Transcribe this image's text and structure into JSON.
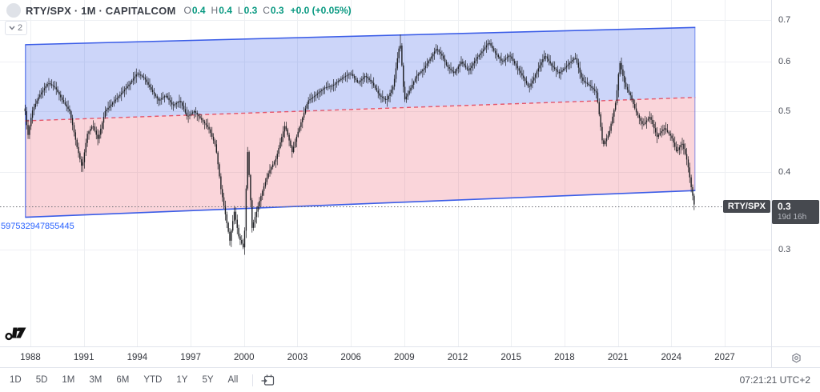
{
  "header": {
    "symbol_title": "RTY/SPX · 1M · CAPITALCOM",
    "ohlc": [
      {
        "label": "O",
        "value": "0.4"
      },
      {
        "label": "H",
        "value": "0.4"
      },
      {
        "label": "L",
        "value": "0.3"
      },
      {
        "label": "C",
        "value": "0.3"
      }
    ],
    "change": "+0.0 (+0.05%)",
    "collapse_count": "2"
  },
  "price_scale": {
    "symbol_label": "RTY/SPX",
    "last_price_label": "0.3",
    "countdown": "19d 16h"
  },
  "drawing_label": "597532947855445",
  "toolbar": {
    "ranges": [
      "1D",
      "5D",
      "1M",
      "3M",
      "6M",
      "YTD",
      "1Y",
      "5Y",
      "All"
    ],
    "clock": "07:21:21 UTC+2"
  },
  "colors": {
    "background": "#ffffff",
    "grid": "#eef0f3",
    "axis_border": "#e0e3eb",
    "bar": "#1c1e22",
    "channel_line": "#3b5de7",
    "channel_fill_upper": "rgba(59,93,231,0.26)",
    "channel_fill_lower": "rgba(231,62,88,0.22)",
    "channel_mid_line": "#e4556a",
    "price_line": "#6b6e76",
    "label_box_bg": "#46494f",
    "drawing_text_blue": "#2962ff",
    "legend_value_green": "#089981"
  },
  "chart_data": {
    "type": "candlestick",
    "symbol": "RTY/SPX",
    "timeframe": "1M",
    "scale": "logarithmic",
    "grid": true,
    "price_ticks": [
      0.7,
      0.6,
      0.5,
      0.4,
      0.3
    ],
    "year_ticks": [
      1988,
      1991,
      1994,
      1997,
      2000,
      2003,
      2006,
      2009,
      2012,
      2015,
      2018,
      2021,
      2024,
      2027
    ],
    "last_price": 0.352,
    "bars_per_year": 12,
    "series_anchors": [
      [
        1987.7,
        0.5
      ],
      [
        1987.85,
        0.455
      ],
      [
        1988.1,
        0.5
      ],
      [
        1988.5,
        0.53
      ],
      [
        1989.0,
        0.555
      ],
      [
        1989.4,
        0.545
      ],
      [
        1989.8,
        0.52
      ],
      [
        1990.2,
        0.5
      ],
      [
        1990.6,
        0.44
      ],
      [
        1990.9,
        0.405
      ],
      [
        1991.2,
        0.46
      ],
      [
        1991.5,
        0.475
      ],
      [
        1991.8,
        0.45
      ],
      [
        1992.2,
        0.5
      ],
      [
        1992.6,
        0.515
      ],
      [
        1993.0,
        0.53
      ],
      [
        1993.5,
        0.55
      ],
      [
        1994.0,
        0.575
      ],
      [
        1994.4,
        0.565
      ],
      [
        1994.8,
        0.54
      ],
      [
        1995.2,
        0.52
      ],
      [
        1995.6,
        0.53
      ],
      [
        1996.0,
        0.51
      ],
      [
        1996.4,
        0.52
      ],
      [
        1996.8,
        0.49
      ],
      [
        1997.2,
        0.5
      ],
      [
        1997.6,
        0.485
      ],
      [
        1998.0,
        0.47
      ],
      [
        1998.4,
        0.44
      ],
      [
        1998.7,
        0.375
      ],
      [
        1999.0,
        0.335
      ],
      [
        1999.2,
        0.31
      ],
      [
        1999.45,
        0.345
      ],
      [
        1999.7,
        0.315
      ],
      [
        2000.0,
        0.3
      ],
      [
        2000.2,
        0.43
      ],
      [
        2000.45,
        0.325
      ],
      [
        2000.7,
        0.345
      ],
      [
        2001.0,
        0.37
      ],
      [
        2001.4,
        0.4
      ],
      [
        2001.8,
        0.42
      ],
      [
        2002.3,
        0.475
      ],
      [
        2002.7,
        0.43
      ],
      [
        2003.1,
        0.47
      ],
      [
        2003.6,
        0.52
      ],
      [
        2004.0,
        0.53
      ],
      [
        2004.5,
        0.545
      ],
      [
        2005.0,
        0.55
      ],
      [
        2005.5,
        0.565
      ],
      [
        2006.0,
        0.575
      ],
      [
        2006.4,
        0.555
      ],
      [
        2006.8,
        0.57
      ],
      [
        2007.2,
        0.555
      ],
      [
        2007.6,
        0.53
      ],
      [
        2008.0,
        0.52
      ],
      [
        2008.4,
        0.55
      ],
      [
        2008.7,
        0.63
      ],
      [
        2008.75,
        0.655
      ],
      [
        2009.0,
        0.52
      ],
      [
        2009.3,
        0.54
      ],
      [
        2009.7,
        0.57
      ],
      [
        2010.1,
        0.585
      ],
      [
        2010.5,
        0.61
      ],
      [
        2010.8,
        0.63
      ],
      [
        2011.1,
        0.615
      ],
      [
        2011.4,
        0.59
      ],
      [
        2011.8,
        0.575
      ],
      [
        2012.2,
        0.6
      ],
      [
        2012.6,
        0.58
      ],
      [
        2013.0,
        0.605
      ],
      [
        2013.4,
        0.625
      ],
      [
        2013.75,
        0.645
      ],
      [
        2014.1,
        0.62
      ],
      [
        2014.5,
        0.6
      ],
      [
        2014.9,
        0.615
      ],
      [
        2015.3,
        0.59
      ],
      [
        2015.7,
        0.565
      ],
      [
        2016.0,
        0.545
      ],
      [
        2016.4,
        0.575
      ],
      [
        2016.9,
        0.615
      ],
      [
        2017.3,
        0.59
      ],
      [
        2017.7,
        0.575
      ],
      [
        2018.1,
        0.59
      ],
      [
        2018.6,
        0.61
      ],
      [
        2019.0,
        0.56
      ],
      [
        2019.4,
        0.55
      ],
      [
        2019.8,
        0.535
      ],
      [
        2020.15,
        0.44
      ],
      [
        2020.5,
        0.46
      ],
      [
        2020.9,
        0.52
      ],
      [
        2021.1,
        0.6
      ],
      [
        2021.4,
        0.55
      ],
      [
        2021.7,
        0.53
      ],
      [
        2022.0,
        0.5
      ],
      [
        2022.4,
        0.475
      ],
      [
        2022.8,
        0.49
      ],
      [
        2023.2,
        0.455
      ],
      [
        2023.6,
        0.47
      ],
      [
        2024.0,
        0.455
      ],
      [
        2024.3,
        0.43
      ],
      [
        2024.6,
        0.445
      ],
      [
        2024.9,
        0.415
      ],
      [
        2025.1,
        0.38
      ],
      [
        2025.3,
        0.352
      ]
    ],
    "channel": {
      "t_start": 1987.7,
      "t_end": 2025.35,
      "upper": [
        0.639,
        0.681
      ],
      "middle": [
        0.4825,
        0.526
      ],
      "lower": [
        0.338,
        0.373
      ]
    }
  }
}
